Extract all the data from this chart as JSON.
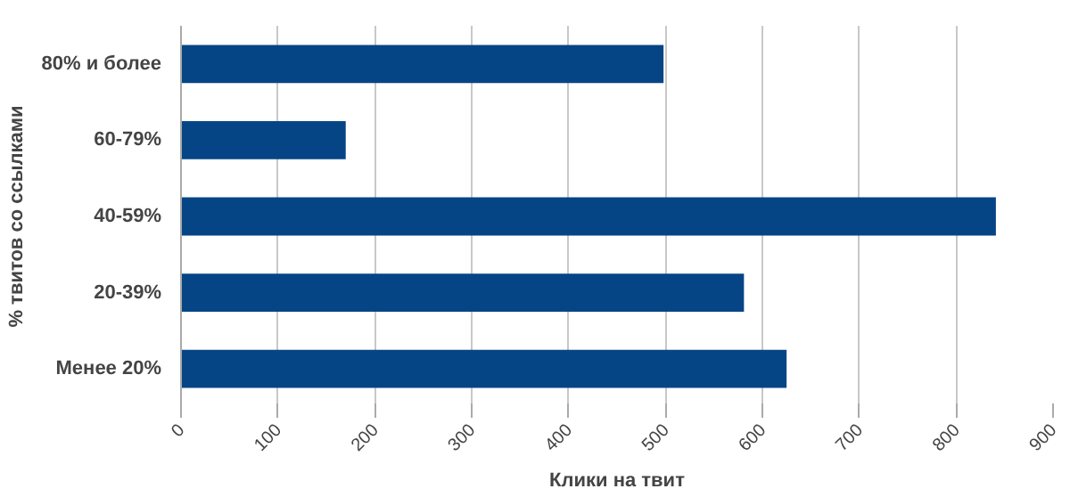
{
  "chart_data": {
    "type": "bar",
    "orientation": "horizontal",
    "xlabel": "Клики на твит",
    "ylabel": "% твитов со ссылками",
    "categories": [
      "80% и более",
      "60-79%",
      "40-59%",
      "20-39%",
      "Менее 20%"
    ],
    "values": [
      498,
      170,
      841,
      581,
      625
    ],
    "color": "#064585",
    "xlim": [
      0,
      900
    ],
    "xticks": [
      0,
      100,
      200,
      300,
      400,
      500,
      600,
      700,
      800,
      900
    ],
    "grid": "x"
  }
}
